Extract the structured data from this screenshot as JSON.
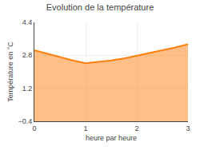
{
  "chart_data": {
    "type": "area",
    "title": "Evolution de la température",
    "x_label": "heure par heure",
    "y_label": "Température en °C",
    "x": [
      0,
      0.25,
      0.5,
      0.75,
      1.0,
      1.25,
      1.5,
      1.75,
      2.0,
      2.25,
      2.5,
      2.75,
      3.0
    ],
    "values": [
      3.05,
      2.88,
      2.72,
      2.55,
      2.42,
      2.48,
      2.55,
      2.65,
      2.78,
      2.9,
      3.05,
      3.18,
      3.34
    ],
    "xlim": [
      0,
      3
    ],
    "xticks": [
      0,
      1,
      2,
      3
    ],
    "ylim": [
      -0.4,
      4.4
    ],
    "yticks": [
      -0.4,
      1.2,
      2.8,
      4.4
    ],
    "grid": true
  }
}
